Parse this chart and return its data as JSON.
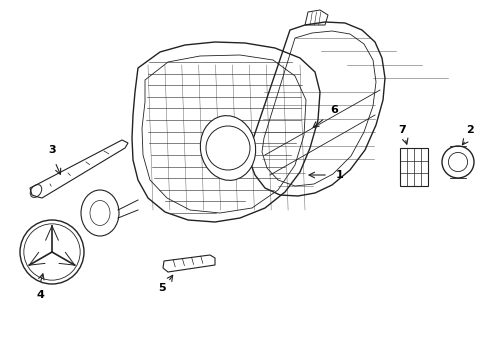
{
  "bg_color": "#ffffff",
  "line_color": "#222222",
  "label_color": "#000000",
  "fig_width": 4.89,
  "fig_height": 3.6,
  "dpi": 100
}
